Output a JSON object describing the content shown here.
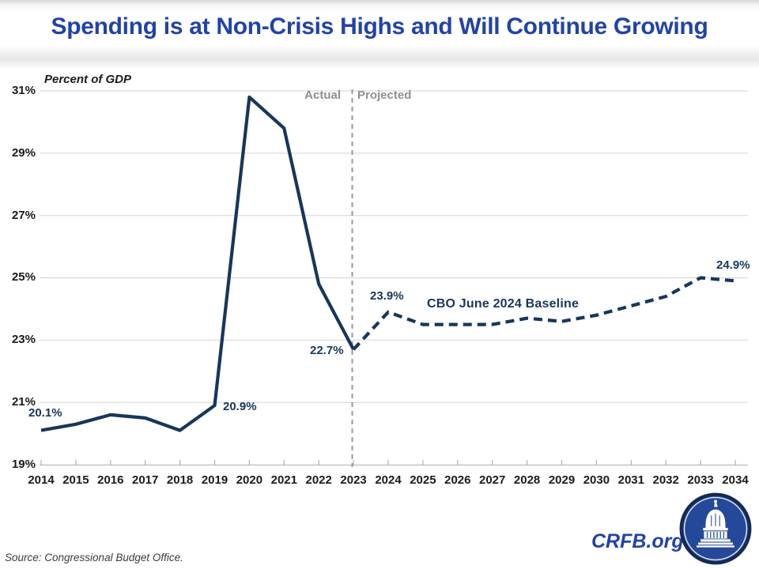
{
  "header": {
    "title": "Spending is at Non-Crisis Highs and Will Continue Growing"
  },
  "chart_data": {
    "type": "line",
    "title": "Spending is at Non-Crisis Highs and Will Continue Growing",
    "unit_label": "Percent of GDP",
    "ylabel": "Percent of GDP",
    "ylim": [
      19,
      31
    ],
    "y_ticks": [
      31,
      29,
      27,
      25,
      23,
      21,
      19
    ],
    "y_tick_suffix": "%",
    "x_years": [
      2014,
      2015,
      2016,
      2017,
      2018,
      2019,
      2020,
      2021,
      2022,
      2023,
      2024,
      2025,
      2026,
      2027,
      2028,
      2029,
      2030,
      2031,
      2032,
      2033,
      2034
    ],
    "grid": "horizontal",
    "legend_position": "none",
    "divider_year": 2023,
    "region_labels": {
      "left": "Actual",
      "right": "Projected"
    },
    "series": [
      {
        "name": "Actual",
        "style": "solid",
        "x": [
          2014,
          2015,
          2016,
          2017,
          2018,
          2019,
          2020,
          2021,
          2022,
          2023
        ],
        "values": [
          20.1,
          20.3,
          20.6,
          20.5,
          20.1,
          20.9,
          30.8,
          29.8,
          24.8,
          22.7
        ]
      },
      {
        "name": "CBO June 2024 Baseline",
        "style": "dashed",
        "x": [
          2023,
          2024,
          2025,
          2026,
          2027,
          2028,
          2029,
          2030,
          2031,
          2032,
          2033,
          2034
        ],
        "values": [
          22.7,
          23.9,
          23.5,
          23.5,
          23.5,
          23.7,
          23.6,
          23.8,
          24.1,
          24.4,
          25.0,
          24.9
        ]
      }
    ],
    "series_label": "CBO June 2024 Baseline",
    "annotations": [
      {
        "year": 2014,
        "value": 20.1,
        "text": "20.1%"
      },
      {
        "year": 2019,
        "value": 20.9,
        "text": "20.9%"
      },
      {
        "year": 2023,
        "value": 22.7,
        "text": "22.7%"
      },
      {
        "year": 2024,
        "value": 23.9,
        "text": "23.9%"
      },
      {
        "year": 2034,
        "value": 24.9,
        "text": "24.9%"
      }
    ]
  },
  "colors": {
    "line": "#17365d",
    "title": "#2143a8",
    "grid": "#d9d9d9",
    "axis": "#c3c3c3",
    "tick": "#b0b0b0",
    "divider": "#999999",
    "region_label": "#8f8f8f",
    "tick_label": "#1a1a1a",
    "logo_ring": "#152a4e",
    "logo_fill": "#25499a"
  },
  "footer": {
    "source": "Source: Congressional Budget Office.",
    "site": "CRFB.org"
  }
}
